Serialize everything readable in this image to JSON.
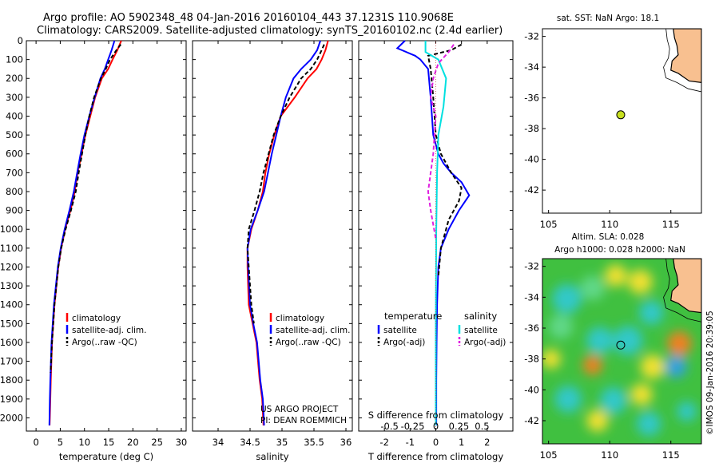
{
  "header": {
    "line1": "Argo profile: AO 5902348_48 04-Jan-2016 20160104_443 37.1231S 110.9068E",
    "line2": "Climatology: CARS2009. Satellite-adjusted climatology: synTS_20160102.nc (2.4d earlier)"
  },
  "colors": {
    "clim": "#ff0000",
    "sat": "#0000ff",
    "argo": "#000000",
    "sal_sat": "#00e0e0",
    "sal_argo": "#e020e0",
    "land": "#f8c090"
  },
  "chart_data": [
    {
      "type": "line",
      "title": "",
      "xlabel": "temperature (deg C)",
      "ylabel": "",
      "xlim": [
        -2,
        31
      ],
      "ylim": [
        2070,
        0
      ],
      "xticks": [
        0,
        5,
        10,
        15,
        20,
        25,
        30
      ],
      "yticks": [
        0,
        100,
        200,
        300,
        400,
        500,
        600,
        700,
        800,
        900,
        1000,
        1100,
        1200,
        1300,
        1400,
        1500,
        1600,
        1700,
        1800,
        1900,
        2000
      ],
      "legend": [
        "climatology",
        "satellite-adj. clim.",
        "Argo(..raw -QC)"
      ],
      "series": [
        {
          "name": "climatology",
          "color": "#ff0000",
          "x": [
            17.6,
            16.8,
            15.8,
            14.9,
            13.6,
            12.2,
            11.2,
            10.2,
            9.4,
            8.6,
            8.0,
            7.1,
            6.0,
            5.2,
            4.6,
            3.8,
            3.3,
            3.05,
            2.95,
            2.85,
            2.8
          ],
          "y": [
            0,
            50,
            100,
            150,
            200,
            300,
            400,
            500,
            600,
            700,
            800,
            900,
            1000,
            1100,
            1200,
            1400,
            1600,
            1800,
            1900,
            2000,
            2040
          ]
        },
        {
          "name": "satellite-adj. clim.",
          "color": "#0000ff",
          "x": [
            16.2,
            15.6,
            14.9,
            14.2,
            13.3,
            12.1,
            11.0,
            10.0,
            9.2,
            8.5,
            7.8,
            6.9,
            5.9,
            5.1,
            4.5,
            3.7,
            3.2,
            2.95,
            2.85,
            2.78,
            2.75
          ],
          "y": [
            0,
            50,
            100,
            150,
            200,
            300,
            400,
            500,
            600,
            700,
            800,
            900,
            1000,
            1100,
            1200,
            1400,
            1600,
            1800,
            1900,
            2000,
            2040
          ]
        },
        {
          "name": "Argo(..raw -QC)",
          "color": "#000000",
          "dashed": true,
          "x": [
            17.5,
            16.6,
            15.3,
            14.4,
            13.4,
            12.0,
            11.0,
            10.2,
            9.5,
            8.8,
            8.2,
            7.2,
            6.1,
            5.2,
            4.6,
            3.8,
            3.3,
            3.0
          ],
          "y": [
            20,
            50,
            100,
            150,
            200,
            300,
            400,
            500,
            600,
            700,
            800,
            900,
            1000,
            1100,
            1200,
            1400,
            1600,
            1760
          ]
        }
      ]
    },
    {
      "type": "line",
      "title": "",
      "xlabel": "salinity",
      "ylabel": "",
      "xlim": [
        33.6,
        36.1
      ],
      "ylim": [
        2070,
        0
      ],
      "xticks": [
        34,
        34.5,
        35,
        35.5,
        36
      ],
      "legend": [
        "climatology",
        "satellite-adj. clim.",
        "Argo(..raw -QC)"
      ],
      "annotations": [
        "US ARGO PROJECT",
        "PI: DEAN ROEMMICH"
      ],
      "series": [
        {
          "name": "climatology",
          "color": "#ff0000",
          "x": [
            35.72,
            35.68,
            35.62,
            35.54,
            35.4,
            35.2,
            34.98,
            34.88,
            34.8,
            34.74,
            34.7,
            34.62,
            34.52,
            34.46,
            34.46,
            34.48,
            34.54,
            34.6,
            34.65,
            34.69,
            34.71
          ],
          "y": [
            0,
            50,
            100,
            150,
            200,
            300,
            400,
            500,
            600,
            700,
            800,
            900,
            1000,
            1100,
            1200,
            1400,
            1500,
            1600,
            1800,
            1900,
            2040
          ]
        },
        {
          "name": "satellite-adj. clim.",
          "color": "#0000ff",
          "x": [
            35.6,
            35.55,
            35.45,
            35.3,
            35.18,
            35.06,
            34.98,
            34.91,
            34.84,
            34.78,
            34.72,
            34.62,
            34.51,
            34.46,
            34.47,
            34.5,
            34.55,
            34.61,
            34.66,
            34.7,
            34.72
          ],
          "y": [
            0,
            50,
            100,
            150,
            200,
            300,
            400,
            500,
            600,
            700,
            800,
            900,
            1000,
            1100,
            1200,
            1400,
            1500,
            1600,
            1800,
            1900,
            2040
          ]
        },
        {
          "name": "Argo(..raw -QC)",
          "color": "#000000",
          "dashed": true,
          "x": [
            35.66,
            35.62,
            35.55,
            35.45,
            35.3,
            35.12,
            34.98,
            34.87,
            34.79,
            34.71,
            34.65,
            34.57,
            34.48,
            34.46,
            34.48,
            34.52,
            34.56
          ],
          "y": [
            20,
            50,
            100,
            150,
            200,
            300,
            400,
            500,
            600,
            700,
            800,
            900,
            1000,
            1100,
            1200,
            1400,
            1500
          ]
        }
      ]
    },
    {
      "type": "line",
      "title": "",
      "xlabel": "T difference from climatology",
      "ylabel": "",
      "xlim": [
        -3,
        3
      ],
      "ylim": [
        2070,
        0
      ],
      "xticks_T": [
        -2,
        -1,
        0,
        1,
        2
      ],
      "xticks_S_labels": [
        "-0.5",
        "-0.25",
        "0",
        "0.25",
        "0.5"
      ],
      "xticks_S_pos": [
        -2,
        -1,
        0,
        1,
        2
      ],
      "xlabel_top": "S difference from climatology",
      "legend_headers": [
        "temperature",
        "salinity"
      ],
      "legend": [
        "satellite",
        "Argo(-adj)",
        "satellite",
        "Argo(-adj)"
      ],
      "series": [
        {
          "name": "T satellite",
          "color": "#0000ff",
          "x": [
            -1.2,
            -1.5,
            -0.8,
            -0.6,
            -0.3,
            -0.2,
            -0.1,
            0.1,
            0.3,
            0.6,
            1.0,
            1.3,
            0.9,
            0.5,
            0.2,
            0.1,
            0.05,
            0.03,
            0.02,
            0.02
          ],
          "y": [
            0,
            40,
            80,
            100,
            150,
            300,
            500,
            600,
            650,
            700,
            750,
            820,
            900,
            1000,
            1100,
            1200,
            1400,
            1600,
            1800,
            2040
          ]
        },
        {
          "name": "T Argo(-adj)",
          "color": "#000000",
          "dashed": true,
          "x": [
            1.0,
            0.6,
            -0.3,
            -0.2,
            -0.1,
            0.0,
            0.2,
            0.6,
            1.0,
            0.9,
            0.5,
            0.2,
            0.1
          ],
          "y": [
            20,
            50,
            80,
            150,
            300,
            500,
            600,
            700,
            780,
            850,
            950,
            1100,
            1250
          ]
        },
        {
          "name": "S satellite",
          "color": "#00e0e0",
          "x": [
            -0.4,
            -0.4,
            0.1,
            0.4,
            0.3,
            0.1,
            0.05,
            0.02,
            0.0,
            0.0
          ],
          "y": [
            0,
            60,
            100,
            200,
            350,
            500,
            700,
            1000,
            1500,
            2040
          ]
        },
        {
          "name": "S Argo(-adj)",
          "color": "#e020e0",
          "dashed": true,
          "x": [
            0.7,
            0.5,
            0.1,
            -0.1,
            -0.2,
            0.0,
            -0.1,
            -0.2,
            -0.3,
            -0.2,
            0.0
          ],
          "y": [
            20,
            60,
            120,
            200,
            300,
            400,
            600,
            700,
            800,
            900,
            1050
          ]
        }
      ]
    },
    {
      "type": "scatter",
      "title": "sat. SST: NaN Argo: 18.1",
      "xlim": [
        104.5,
        117.5
      ],
      "ylim": [
        -43.5,
        -31.5
      ],
      "xticks": [
        105,
        110,
        115
      ],
      "yticks": [
        -32,
        -34,
        -36,
        -38,
        -40,
        -42
      ],
      "point": {
        "lon": 110.9,
        "lat": -37.1,
        "color": "#c8e020"
      }
    },
    {
      "type": "heatmap",
      "title_line1": "Altim. SLA: 0.028",
      "title_line2": "Argo h1000: 0.028 h2000: NaN",
      "xlim": [
        104.5,
        117.5
      ],
      "ylim": [
        -43.5,
        -31.5
      ],
      "xticks": [
        105,
        110,
        115
      ],
      "yticks": [
        -32,
        -34,
        -36,
        -38,
        -40,
        -42
      ],
      "point": {
        "lon": 110.9,
        "lat": -37.1
      },
      "side_label": "©IMOS 09-Jan-2016 20:39:05",
      "blobs": [
        {
          "lon": 106.5,
          "lat": -34.1,
          "c": "#30c8c8",
          "r": 1.2
        },
        {
          "lon": 108.6,
          "lat": -33.4,
          "c": "#60d888",
          "r": 1.0
        },
        {
          "lon": 110.5,
          "lat": -32.6,
          "c": "#f0e030",
          "r": 0.9
        },
        {
          "lon": 112.5,
          "lat": -33.0,
          "c": "#f0e030",
          "r": 1.0
        },
        {
          "lon": 113.4,
          "lat": -35.0,
          "c": "#30c8c8",
          "r": 1.0
        },
        {
          "lon": 106.0,
          "lat": -35.9,
          "c": "#60d888",
          "r": 1.0
        },
        {
          "lon": 109.2,
          "lat": -36.8,
          "c": "#30c8c8",
          "r": 1.1
        },
        {
          "lon": 111.5,
          "lat": -36.8,
          "c": "#30c8c8",
          "r": 1.2
        },
        {
          "lon": 115.7,
          "lat": -37.0,
          "c": "#f08020",
          "r": 1.0
        },
        {
          "lon": 108.6,
          "lat": -38.4,
          "c": "#f08020",
          "r": 0.8
        },
        {
          "lon": 113.5,
          "lat": -38.5,
          "c": "#f0e030",
          "r": 1.0
        },
        {
          "lon": 115.4,
          "lat": -38.5,
          "c": "#30a0e0",
          "r": 0.9
        },
        {
          "lon": 106.6,
          "lat": -40.6,
          "c": "#30c8c8",
          "r": 1.1
        },
        {
          "lon": 110.3,
          "lat": -40.7,
          "c": "#30c8c8",
          "r": 1.1
        },
        {
          "lon": 112.6,
          "lat": -40.3,
          "c": "#f0e030",
          "r": 0.9
        },
        {
          "lon": 113.2,
          "lat": -42.2,
          "c": "#30c8c8",
          "r": 1.0
        },
        {
          "lon": 109.0,
          "lat": -42.0,
          "c": "#f0e030",
          "r": 0.9
        },
        {
          "lon": 116.3,
          "lat": -41.4,
          "c": "#30c8c8",
          "r": 0.8
        },
        {
          "lon": 105.2,
          "lat": -38.0,
          "c": "#f0e030",
          "r": 0.8
        }
      ]
    }
  ]
}
